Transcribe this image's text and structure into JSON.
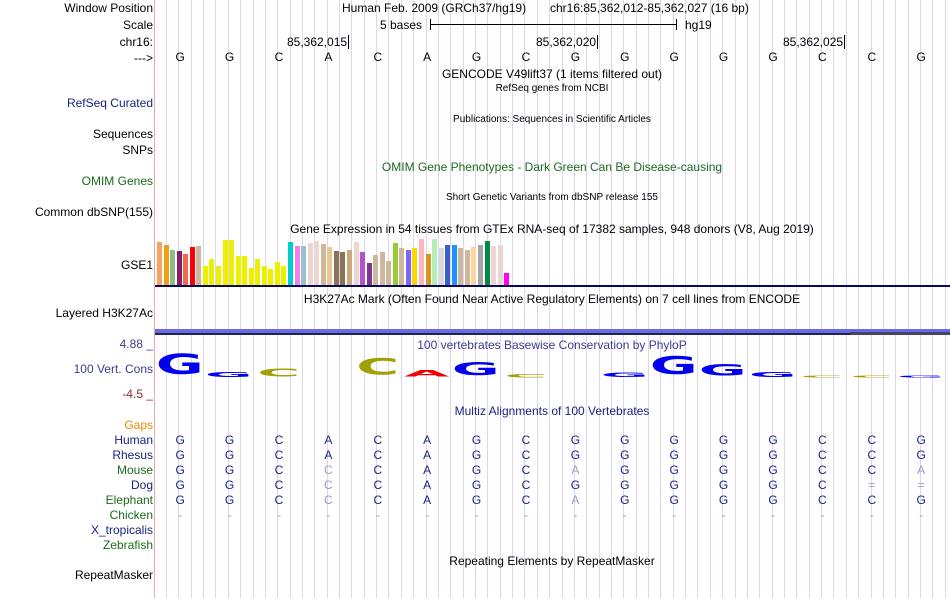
{
  "header": {
    "window_position_label": "Window Position",
    "scale_label": "Scale",
    "chrom_label": "chr16:",
    "strand_label": "--->",
    "assembly": "Human Feb. 2009 (GRCh37/hg19)",
    "position": "chr16:85,362,012-85,362,027 (16 bp)",
    "scale_text": "5 bases",
    "scale_db": "hg19",
    "coords": [
      "85,362,015",
      "85,362,020",
      "85,362,025"
    ]
  },
  "sequence": [
    "G",
    "G",
    "C",
    "A",
    "C",
    "A",
    "G",
    "C",
    "G",
    "G",
    "G",
    "G",
    "G",
    "C",
    "C",
    "G"
  ],
  "tracks": {
    "gencode_title": "GENCODE V49lift37 (1 items filtered out)",
    "refseq_label": "RefSeq Curated",
    "refseq_title": "RefSeq genes from NCBI",
    "sequences_label": "Sequences",
    "publications_title": "Publications: Sequences in Scientific Articles",
    "snps_label": "SNPs",
    "omim_title": "OMIM Gene Phenotypes - Dark Green Can Be Disease-causing",
    "omim_label": "OMIM Genes",
    "dbsnp_title": "Short Genetic Variants from dbSNP release 155",
    "dbsnp_label": "Common dbSNP(155)",
    "gtex_title": "Gene Expression in 54 tissues from GTEx RNA-seq of 17382 samples, 948 donors (V8, Aug 2019)",
    "gtex_label": "GSE1",
    "h3k27ac_title": "H3K27Ac Mark (Often Found Near Active Regulatory Elements) on 7 cell lines from ENCODE",
    "h3k27ac_label": "Layered H3K27Ac",
    "cons_title": "100 vertebrates Basewise Conservation by PhyloP",
    "cons_label": "100 Vert. Cons",
    "cons_max": "4.88 _",
    "cons_min": "-4.5 _",
    "multiz_title": "Multiz Alignments of 100 Vertebrates",
    "gaps_label": "Gaps",
    "repeat_title": "Repeating Elements by RepeatMasker",
    "repeat_label": "RepeatMasker"
  },
  "gtex_bars": [
    {
      "v": 0.93,
      "c": "#f4a460"
    },
    {
      "v": 0.88,
      "c": "#eea211"
    },
    {
      "v": 0.77,
      "c": "#8fbc8f"
    },
    {
      "v": 0.74,
      "c": "#8b1c62"
    },
    {
      "v": 0.68,
      "c": "#ee6a50"
    },
    {
      "v": 0.82,
      "c": "#ff0000"
    },
    {
      "v": 0.85,
      "c": "#cdb79e"
    },
    {
      "v": 0.41,
      "c": "#eeee00"
    },
    {
      "v": 0.56,
      "c": "#eeee00"
    },
    {
      "v": 0.41,
      "c": "#eeee00"
    },
    {
      "v": 0.97,
      "c": "#eeee00"
    },
    {
      "v": 0.97,
      "c": "#eeee00"
    },
    {
      "v": 0.62,
      "c": "#eeee00"
    },
    {
      "v": 0.62,
      "c": "#eeee00"
    },
    {
      "v": 0.38,
      "c": "#eeee00"
    },
    {
      "v": 0.56,
      "c": "#eeee00"
    },
    {
      "v": 0.41,
      "c": "#eeee00"
    },
    {
      "v": 0.35,
      "c": "#eeee00"
    },
    {
      "v": 0.5,
      "c": "#eeee00"
    },
    {
      "v": 0.41,
      "c": "#eeee00"
    },
    {
      "v": 0.93,
      "c": "#00cdcd"
    },
    {
      "v": 0.85,
      "c": "#ee82ee"
    },
    {
      "v": 0.85,
      "c": "#9ac0cd"
    },
    {
      "v": 0.91,
      "c": "#eed5d2"
    },
    {
      "v": 0.95,
      "c": "#eed5d2"
    },
    {
      "v": 0.89,
      "c": "#cdb79e"
    },
    {
      "v": 0.83,
      "c": "#eec591"
    },
    {
      "v": 0.74,
      "c": "#8b7355"
    },
    {
      "v": 0.72,
      "c": "#8b7355"
    },
    {
      "v": 0.76,
      "c": "#cdaa7d"
    },
    {
      "v": 0.93,
      "c": "#eed5d2"
    },
    {
      "v": 0.72,
      "c": "#b452cd"
    },
    {
      "v": 0.47,
      "c": "#7a378b"
    },
    {
      "v": 0.65,
      "c": "#cdb79e"
    },
    {
      "v": 0.71,
      "c": "#cdb79e"
    },
    {
      "v": 0.53,
      "c": "#cdb79e"
    },
    {
      "v": 0.91,
      "c": "#9acd32"
    },
    {
      "v": 0.8,
      "c": "#cdb79e"
    },
    {
      "v": 0.77,
      "c": "#7b68ee"
    },
    {
      "v": 0.8,
      "c": "#ffd700"
    },
    {
      "v": 1.0,
      "c": "#ffb6c1"
    },
    {
      "v": 0.67,
      "c": "#cd9b1d"
    },
    {
      "v": 1.0,
      "c": "#b4eeb4"
    },
    {
      "v": 0.8,
      "c": "#d9d9d9"
    },
    {
      "v": 0.88,
      "c": "#3a5fcd"
    },
    {
      "v": 0.88,
      "c": "#1e90ff"
    },
    {
      "v": 0.8,
      "c": "#cdb79e"
    },
    {
      "v": 0.77,
      "c": "#cdb79e"
    },
    {
      "v": 0.82,
      "c": "#ffd39b"
    },
    {
      "v": 0.88,
      "c": "#a6a6a6"
    },
    {
      "v": 0.95,
      "c": "#008b45"
    },
    {
      "v": 0.85,
      "c": "#eed5d2"
    },
    {
      "v": 0.87,
      "c": "#eed5d2"
    },
    {
      "v": 0.26,
      "c": "#ff00ff"
    }
  ],
  "conservation_logo": [
    {
      "base": "G",
      "score": 0.95,
      "color": "#0000ee"
    },
    {
      "base": "G",
      "score": 0.25,
      "color": "#0000ee"
    },
    {
      "base": "C",
      "score": 0.35,
      "color": "#a0a000"
    },
    {
      "base": "",
      "score": 0,
      "color": "#ffffff"
    },
    {
      "base": "C",
      "score": 0.75,
      "color": "#a0a000"
    },
    {
      "base": "A",
      "score": 0.3,
      "color": "#ee0000"
    },
    {
      "base": "G",
      "score": 0.6,
      "color": "#0000ee"
    },
    {
      "base": "C",
      "score": 0.15,
      "color": "#a0a000"
    },
    {
      "base": "",
      "score": 0,
      "color": "#ffffff"
    },
    {
      "base": "G",
      "score": 0.2,
      "color": "#0000ee"
    },
    {
      "base": "G",
      "score": 0.85,
      "color": "#0000ee"
    },
    {
      "base": "G",
      "score": 0.55,
      "color": "#0000ee"
    },
    {
      "base": "G",
      "score": 0.25,
      "color": "#0000ee"
    },
    {
      "base": "C",
      "score": 0.1,
      "color": "#a0a000"
    },
    {
      "base": "C",
      "score": 0.05,
      "color": "#a0a000"
    },
    {
      "base": "G",
      "score": 0.03,
      "color": "#0000ee"
    }
  ],
  "alignment": [
    {
      "species": "Human",
      "color": "#1a237e",
      "bases": [
        "G",
        "G",
        "C",
        "A",
        "C",
        "A",
        "G",
        "C",
        "G",
        "G",
        "G",
        "G",
        "G",
        "C",
        "C",
        "G"
      ],
      "dim": []
    },
    {
      "species": "Rhesus",
      "color": "#1a237e",
      "bases": [
        "G",
        "G",
        "C",
        "A",
        "C",
        "A",
        "G",
        "C",
        "G",
        "G",
        "G",
        "G",
        "G",
        "C",
        "C",
        "G"
      ],
      "dim": []
    },
    {
      "species": "Mouse",
      "color": "#1b6b1b",
      "bases": [
        "G",
        "G",
        "C",
        "C",
        "C",
        "A",
        "G",
        "C",
        "A",
        "G",
        "G",
        "G",
        "G",
        "C",
        "C",
        "A"
      ],
      "dim": [
        3,
        8,
        15
      ]
    },
    {
      "species": "Dog",
      "color": "#1a237e",
      "bases": [
        "G",
        "G",
        "C",
        "C",
        "C",
        "A",
        "G",
        "C",
        "G",
        "G",
        "G",
        "G",
        "G",
        "C",
        "=",
        "="
      ],
      "dim": [
        3,
        14,
        15
      ]
    },
    {
      "species": "Elephant",
      "color": "#1b6b1b",
      "bases": [
        "G",
        "G",
        "C",
        "C",
        "C",
        "A",
        "G",
        "C",
        "A",
        "G",
        "G",
        "G",
        "G",
        "C",
        "C",
        "G"
      ],
      "dim": [
        3,
        8
      ]
    },
    {
      "species": "Chicken",
      "color": "#1b6b1b",
      "bases": [
        "-",
        "-",
        "-",
        "-",
        "-",
        "-",
        "-",
        "-",
        "-",
        "-",
        "-",
        "-",
        "-",
        "-",
        "-",
        "-"
      ],
      "dim": "all"
    },
    {
      "species": "X_tropicalis",
      "color": "#1a237e",
      "bases": [],
      "dim": []
    },
    {
      "species": "Zebrafish",
      "color": "#1b6b1b",
      "bases": [],
      "dim": []
    }
  ]
}
